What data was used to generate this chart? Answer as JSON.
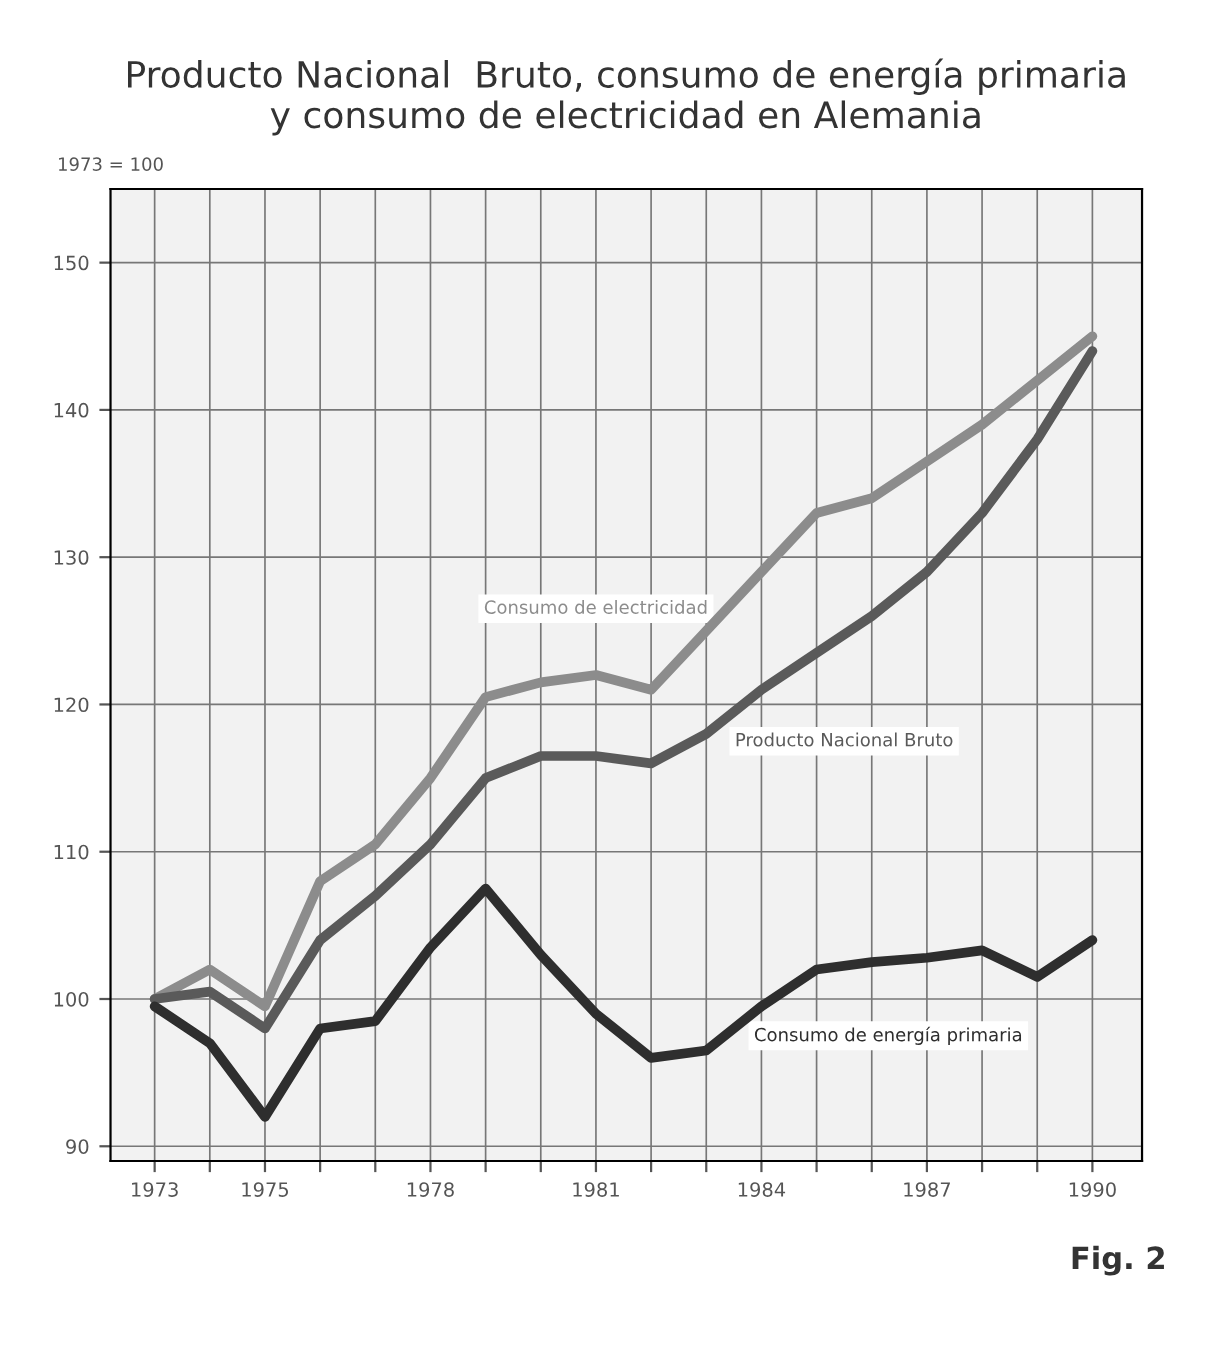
{
  "chart_data": {
    "type": "line",
    "title": "Producto Nacional  Bruto, consumo de energía primaria\ny consumo de electricidad en Alemania",
    "ylabel": "1973 = 100",
    "annotations": [
      "Fig. 2"
    ],
    "x": [
      1973,
      1974,
      1975,
      1976,
      1977,
      1978,
      1979,
      1980,
      1981,
      1982,
      1983,
      1984,
      1985,
      1986,
      1987,
      1988,
      1989,
      1990
    ],
    "series": [
      {
        "name": "Consumo de electricidad",
        "color": "#8c8c8c",
        "values": [
          100,
          102,
          99.5,
          108,
          110.5,
          115,
          120.5,
          121.5,
          122,
          121,
          125,
          129,
          133,
          134,
          136.5,
          139,
          142,
          145
        ]
      },
      {
        "name": "Producto Nacional Bruto",
        "color": "#5a5a5a",
        "values": [
          100,
          100.5,
          98,
          104,
          107,
          110.5,
          115,
          116.5,
          116.5,
          116,
          118,
          121,
          123.5,
          126,
          129,
          133,
          138,
          144
        ]
      },
      {
        "name": "Consumo de energía primaria",
        "color": "#2e2e2e",
        "values": [
          99.5,
          97,
          92,
          98,
          98.5,
          103.5,
          107.5,
          103,
          99,
          96,
          96.5,
          99.5,
          102,
          102.5,
          102.8,
          103.3,
          101.5,
          104
        ]
      }
    ],
    "xlim": [
      1972.2,
      1990.9
    ],
    "ylim": [
      89,
      155
    ],
    "xticks": [
      1973,
      {
        "value": 1974,
        "label": null
      },
      1975,
      {
        "value": 1976,
        "label": null
      },
      {
        "value": 1977,
        "label": null
      },
      1978,
      {
        "value": 1979,
        "label": null
      },
      {
        "value": 1980,
        "label": null
      },
      1981,
      {
        "value": 1982,
        "label": null
      },
      {
        "value": 1983,
        "label": null
      },
      1984,
      {
        "value": 1985,
        "label": null
      },
      {
        "value": 1986,
        "label": null
      },
      1987,
      {
        "value": 1988,
        "label": null
      },
      {
        "value": 1989,
        "label": null
      },
      1990
    ],
    "yticks": [
      90,
      100,
      110,
      120,
      130,
      140,
      150
    ],
    "grid": true,
    "legend": false,
    "line_style": "solid",
    "marker": "none"
  }
}
